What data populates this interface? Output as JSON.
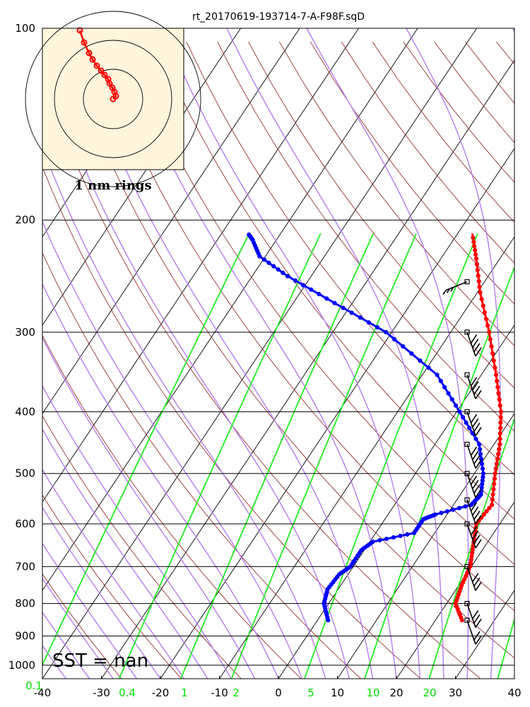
{
  "chart_data": {
    "type": "skew-t",
    "title": "rt_20170619-193714-7-A-F98F.sqD",
    "y_axis": {
      "scale": "log",
      "range": [
        1050,
        100
      ],
      "ticks": [
        100,
        200,
        300,
        400,
        500,
        600,
        700,
        800,
        900,
        1000
      ]
    },
    "x_axis": {
      "range": [
        -40,
        40
      ],
      "ticks": [
        -40,
        -30,
        -20,
        -10,
        0,
        10,
        20,
        30,
        40
      ]
    },
    "mixing_ratio_labels": [
      "0.1",
      "0.4",
      "1",
      "2",
      "5",
      "10",
      "20"
    ],
    "annotation": "SST =  nan",
    "hodograph": {
      "caption": "1 nm rings"
    },
    "temperature": [
      [
        850,
        24.5
      ],
      [
        800,
        21.5
      ],
      [
        750,
        20.5
      ],
      [
        700,
        19.8
      ],
      [
        650,
        18.0
      ],
      [
        600,
        16.0
      ],
      [
        560,
        16.5
      ],
      [
        500,
        13.5
      ],
      [
        450,
        11.0
      ],
      [
        400,
        7.5
      ],
      [
        350,
        2.5
      ],
      [
        300,
        -3.5
      ],
      [
        260,
        -9.5
      ],
      [
        230,
        -14.0
      ],
      [
        210,
        -17.5
      ]
    ],
    "dewpoint": [
      [
        850,
        1.8
      ],
      [
        800,
        -0.8
      ],
      [
        760,
        -1.8
      ],
      [
        720,
        -1.5
      ],
      [
        700,
        -0.5
      ],
      [
        660,
        -0.5
      ],
      [
        640,
        0.5
      ],
      [
        620,
        6.5
      ],
      [
        590,
        6.5
      ],
      [
        580,
        8.0
      ],
      [
        560,
        13.0
      ],
      [
        540,
        13.5
      ],
      [
        500,
        11.5
      ],
      [
        450,
        7.5
      ],
      [
        400,
        0.5
      ],
      [
        350,
        -7.5
      ],
      [
        300,
        -21.0
      ],
      [
        270,
        -33.0
      ],
      [
        245,
        -44.0
      ],
      [
        228,
        -51.0
      ],
      [
        215,
        -54.0
      ],
      [
        210,
        -55.5
      ]
    ],
    "wind": [
      [
        850,
        4,
        320
      ],
      [
        800,
        5,
        300
      ],
      [
        700,
        5,
        300
      ],
      [
        600,
        9,
        300
      ],
      [
        550,
        9,
        300
      ],
      [
        500,
        8,
        300
      ],
      [
        450,
        7,
        310
      ],
      [
        400,
        7,
        310
      ],
      [
        350,
        7,
        310
      ],
      [
        300,
        8,
        300
      ],
      [
        250,
        5,
        250
      ]
    ]
  }
}
